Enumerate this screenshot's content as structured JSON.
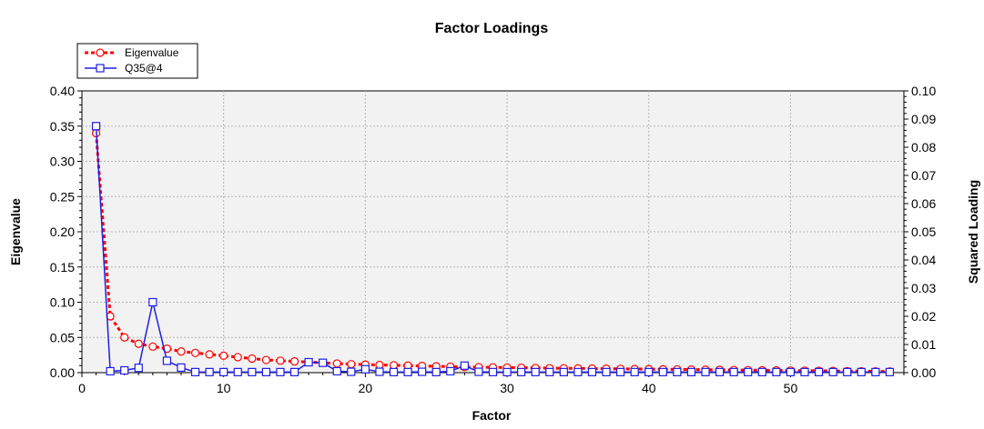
{
  "chart_data": {
    "type": "line",
    "title": "Factor Loadings",
    "xlabel": "Factor",
    "ylabel_left": "Eigenvalue",
    "ylabel_right": "Squared Loading",
    "xlim": [
      0,
      58
    ],
    "ylim_left": [
      0,
      0.4
    ],
    "ylim_right": [
      0,
      0.1
    ],
    "x_ticks": [
      "0",
      "10",
      "20",
      "30",
      "40",
      "50"
    ],
    "y_left_ticks": [
      "0.00",
      "0.05",
      "0.10",
      "0.15",
      "0.20",
      "0.25",
      "0.30",
      "0.35",
      "0.40"
    ],
    "y_right_ticks": [
      "0.00",
      "0.01",
      "0.02",
      "0.03",
      "0.04",
      "0.05",
      "0.06",
      "0.07",
      "0.08",
      "0.09",
      "0.10"
    ],
    "grid": true,
    "legend_position": "top-left",
    "colors": {
      "eigenvalue": "#ff0000",
      "loading": "#1e1ee6",
      "plot_bg": "#f2f2f2",
      "grid": "#b4b4b4"
    },
    "series": [
      {
        "name": "Eigenvalue",
        "axis": "left",
        "style": "dotted-circle",
        "x": [
          1,
          2,
          3,
          4,
          5,
          6,
          7,
          8,
          9,
          10,
          11,
          12,
          13,
          14,
          15,
          16,
          17,
          18,
          19,
          20,
          21,
          22,
          23,
          24,
          25,
          26,
          27,
          28,
          29,
          30,
          31,
          32,
          33,
          34,
          35,
          36,
          37,
          38,
          39,
          40,
          41,
          42,
          43,
          44,
          45,
          46,
          47,
          48,
          49,
          50,
          51,
          52,
          53,
          54,
          55,
          56,
          57
        ],
        "values": [
          0.34,
          0.08,
          0.05,
          0.041,
          0.037,
          0.034,
          0.03,
          0.028,
          0.026,
          0.024,
          0.022,
          0.02,
          0.018,
          0.017,
          0.016,
          0.015,
          0.014,
          0.013,
          0.012,
          0.0115,
          0.011,
          0.0105,
          0.01,
          0.0095,
          0.009,
          0.0085,
          0.008,
          0.0078,
          0.0075,
          0.0072,
          0.007,
          0.0067,
          0.0064,
          0.0062,
          0.006,
          0.0058,
          0.0056,
          0.0054,
          0.0052,
          0.005,
          0.0048,
          0.0046,
          0.0044,
          0.0042,
          0.004,
          0.0038,
          0.0036,
          0.0034,
          0.0032,
          0.003,
          0.0028,
          0.0026,
          0.0024,
          0.0022,
          0.002,
          0.0018,
          0.0016
        ]
      },
      {
        "name": "Q35@4",
        "axis": "right",
        "style": "solid-square",
        "x": [
          1,
          2,
          3,
          4,
          5,
          6,
          7,
          8,
          9,
          10,
          11,
          12,
          13,
          14,
          15,
          16,
          17,
          18,
          19,
          20,
          21,
          22,
          23,
          24,
          25,
          26,
          27,
          28,
          29,
          30,
          31,
          32,
          33,
          34,
          35,
          36,
          37,
          38,
          39,
          40,
          41,
          42,
          43,
          44,
          45,
          46,
          47,
          48,
          49,
          50,
          51,
          52,
          53,
          54,
          55,
          56,
          57
        ],
        "values": [
          0.0875,
          0.0005,
          0.0008,
          0.0017,
          0.025,
          0.0042,
          0.0018,
          0.0002,
          0.0002,
          0.0002,
          0.0002,
          0.0002,
          0.0002,
          0.0002,
          0.0002,
          0.0037,
          0.0035,
          0.0005,
          0.0003,
          0.0012,
          0.0003,
          0.0002,
          0.0002,
          0.0003,
          0.0002,
          0.0005,
          0.0025,
          0.0003,
          0.0002,
          0.0002,
          0.0002,
          0.0002,
          0.0002,
          0.0002,
          0.0002,
          0.0002,
          0.0002,
          0.0002,
          0.0002,
          0.0002,
          0.0002,
          0.0002,
          0.0002,
          0.0002,
          0.0002,
          0.0002,
          0.0002,
          0.0002,
          0.0002,
          0.0002,
          0.0002,
          0.0002,
          0.0002,
          0.0002,
          0.0002,
          0.0002,
          0.0002
        ]
      }
    ]
  }
}
